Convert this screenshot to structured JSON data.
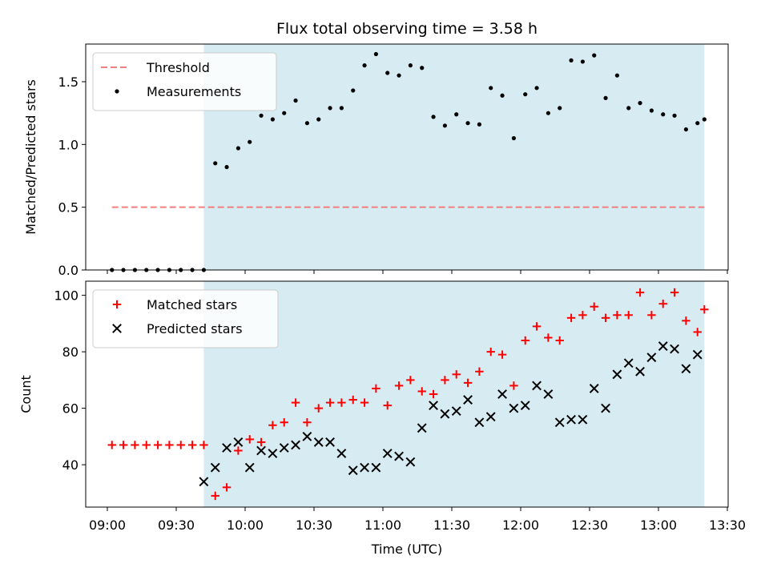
{
  "chart_data": {
    "type": "scatter",
    "title": "Flux total observing time = 3.58 h",
    "xlabel": "Time (UTC)",
    "x_tick_labels": [
      "09:00",
      "09:30",
      "10:00",
      "10:30",
      "11:00",
      "11:30",
      "12:00",
      "12:30",
      "13:00",
      "13:30"
    ],
    "times": [
      "09:02",
      "09:05",
      "09:08",
      "09:11",
      "09:14",
      "09:17",
      "09:20",
      "09:23",
      "09:26",
      "09:29",
      "09:32",
      "09:35",
      "09:38",
      "09:41",
      "09:44",
      "09:47",
      "09:50",
      "09:53",
      "09:56",
      "09:59",
      "10:02",
      "10:05",
      "10:08",
      "10:11",
      "10:14",
      "10:17",
      "10:20",
      "10:23",
      "10:26",
      "10:29",
      "10:32",
      "10:35",
      "10:38",
      "10:41",
      "10:44",
      "10:47",
      "10:50",
      "10:53",
      "10:56",
      "10:59",
      "11:02",
      "11:05",
      "11:08",
      "11:11",
      "11:14",
      "11:17",
      "11:20",
      "11:23",
      "11:26",
      "11:29",
      "11:32",
      "11:35",
      "11:38",
      "11:41",
      "11:44",
      "11:47",
      "11:50",
      "11:53",
      "11:56",
      "11:59"
    ],
    "axes": [
      {
        "ylabel": "Matched/Predicted stars",
        "ylim": [
          0,
          1.8
        ],
        "y_ticks": [
          0.0,
          0.5,
          1.0,
          1.5
        ],
        "y_tick_labels": [
          "0.0",
          "0.5",
          "1.0",
          "1.5"
        ],
        "legend_position": "upper-left",
        "series": [
          {
            "name": "Threshold",
            "kind": "line",
            "style": "dashed",
            "color": "#f08080",
            "value": 0.5,
            "x_range": [
              "09:02",
              "13:20"
            ]
          },
          {
            "name": "Measurements",
            "kind": "scatter",
            "marker": "dot",
            "color": "#000000",
            "x": [
              "09:02",
              "09:07",
              "09:12",
              "09:17",
              "09:22",
              "09:27",
              "09:32",
              "09:37",
              "09:42",
              "09:47",
              "09:52",
              "09:57",
              "10:02",
              "10:07",
              "10:12",
              "10:17",
              "10:22",
              "10:27",
              "10:32",
              "10:37",
              "10:42",
              "10:47",
              "10:52",
              "10:57",
              "11:02",
              "11:07",
              "11:12",
              "11:17",
              "11:22",
              "11:27",
              "11:32",
              "11:37",
              "11:42",
              "11:47",
              "11:52",
              "11:57",
              "12:02",
              "12:07",
              "12:12",
              "12:17",
              "12:22",
              "12:27",
              "12:32",
              "12:37",
              "12:42",
              "12:47",
              "12:52",
              "12:57",
              "13:02",
              "13:07",
              "13:12",
              "13:17"
            ],
            "values": [
              0,
              0,
              0,
              0,
              0,
              0,
              0,
              0,
              0,
              0.85,
              0.82,
              0.97,
              1.02,
              1.23,
              1.2,
              1.25,
              1.35,
              1.17,
              1.2,
              1.29,
              1.29,
              1.43,
              1.63,
              1.72,
              1.57,
              1.55,
              1.63,
              1.61,
              1.22,
              1.15,
              1.24,
              1.17,
              1.16,
              1.45,
              1.39,
              1.05,
              1.4,
              1.45,
              1.25,
              1.29,
              1.67,
              1.66,
              1.71,
              1.37,
              1.55,
              1.29,
              1.33,
              1.27,
              1.24,
              1.23,
              1.12,
              1.17
            ]
          },
          {
            "name": "",
            "kind": "scatter",
            "marker": "dot",
            "color": "#000000",
            "x": [
              "13:20"
            ],
            "values": [
              1.2
            ]
          }
        ]
      },
      {
        "ylabel": "Count",
        "ylim": [
          25,
          105
        ],
        "y_ticks": [
          40,
          60,
          80,
          100
        ],
        "y_tick_labels": [
          "40",
          "60",
          "80",
          "100"
        ],
        "legend_position": "upper-left",
        "series": [
          {
            "name": "Matched stars",
            "kind": "scatter",
            "marker": "plus",
            "color": "#ff0000",
            "x": [
              "09:02",
              "09:07",
              "09:12",
              "09:17",
              "09:22",
              "09:27",
              "09:32",
              "09:37",
              "09:42",
              "09:47",
              "09:52",
              "09:57",
              "10:02",
              "10:07",
              "10:12",
              "10:17",
              "10:22",
              "10:27",
              "10:32",
              "10:37",
              "10:42",
              "10:47",
              "10:52",
              "10:57",
              "11:02",
              "11:07",
              "11:12",
              "11:17",
              "11:22",
              "11:27",
              "11:32",
              "11:37",
              "11:42",
              "11:47",
              "11:52",
              "11:57",
              "12:02",
              "12:07",
              "12:12",
              "12:17",
              "12:22",
              "12:27",
              "12:32",
              "12:37",
              "12:42",
              "12:47",
              "12:52",
              "12:57",
              "13:02",
              "13:07",
              "13:12",
              "13:17"
            ],
            "values": [
              47,
              47,
              47,
              47,
              47,
              47,
              47,
              47,
              47,
              29,
              32,
              45,
              49,
              48,
              54,
              55,
              62,
              55,
              60,
              62,
              62,
              63,
              62,
              67,
              61,
              68,
              70,
              66,
              65,
              70,
              72,
              69,
              73,
              80,
              79,
              68,
              84,
              89,
              85,
              84,
              92,
              93,
              96,
              92,
              93,
              93,
              101,
              93,
              97,
              101,
              91,
              87
            ]
          },
          {
            "name": "Predicted stars",
            "kind": "scatter",
            "marker": "x",
            "color": "#000000",
            "x": [
              "09:42",
              "09:47",
              "09:52",
              "09:57",
              "10:02",
              "10:07",
              "10:12",
              "10:17",
              "10:22",
              "10:27",
              "10:32",
              "10:37",
              "10:42",
              "10:47",
              "10:52",
              "10:57",
              "11:02",
              "11:07",
              "11:12",
              "11:17",
              "11:22",
              "11:27",
              "11:32",
              "11:37",
              "11:42",
              "11:47",
              "11:52",
              "11:57",
              "12:02",
              "12:07",
              "12:12",
              "12:17",
              "12:22",
              "12:27",
              "12:32",
              "12:37",
              "12:42",
              "12:47",
              "12:52",
              "12:57",
              "13:02",
              "13:07",
              "13:12",
              "13:17"
            ],
            "values": [
              34,
              39,
              46,
              48,
              39,
              45,
              44,
              46,
              47,
              50,
              48,
              48,
              44,
              38,
              39,
              39,
              44,
              43,
              41,
              53,
              61,
              58,
              59,
              63,
              55,
              57,
              65,
              60,
              61,
              68,
              65,
              55,
              56,
              56,
              67,
              60,
              72,
              76,
              73,
              78,
              82,
              81,
              74,
              79
            ]
          },
          {
            "name": "",
            "kind": "scatter",
            "marker": "plus",
            "color": "#ff0000",
            "x": [
              "13:20"
            ],
            "values": [
              95
            ]
          }
        ]
      }
    ],
    "shaded_region": {
      "color": "#add8e6",
      "x_range": [
        "09:42",
        "13:20"
      ]
    }
  }
}
